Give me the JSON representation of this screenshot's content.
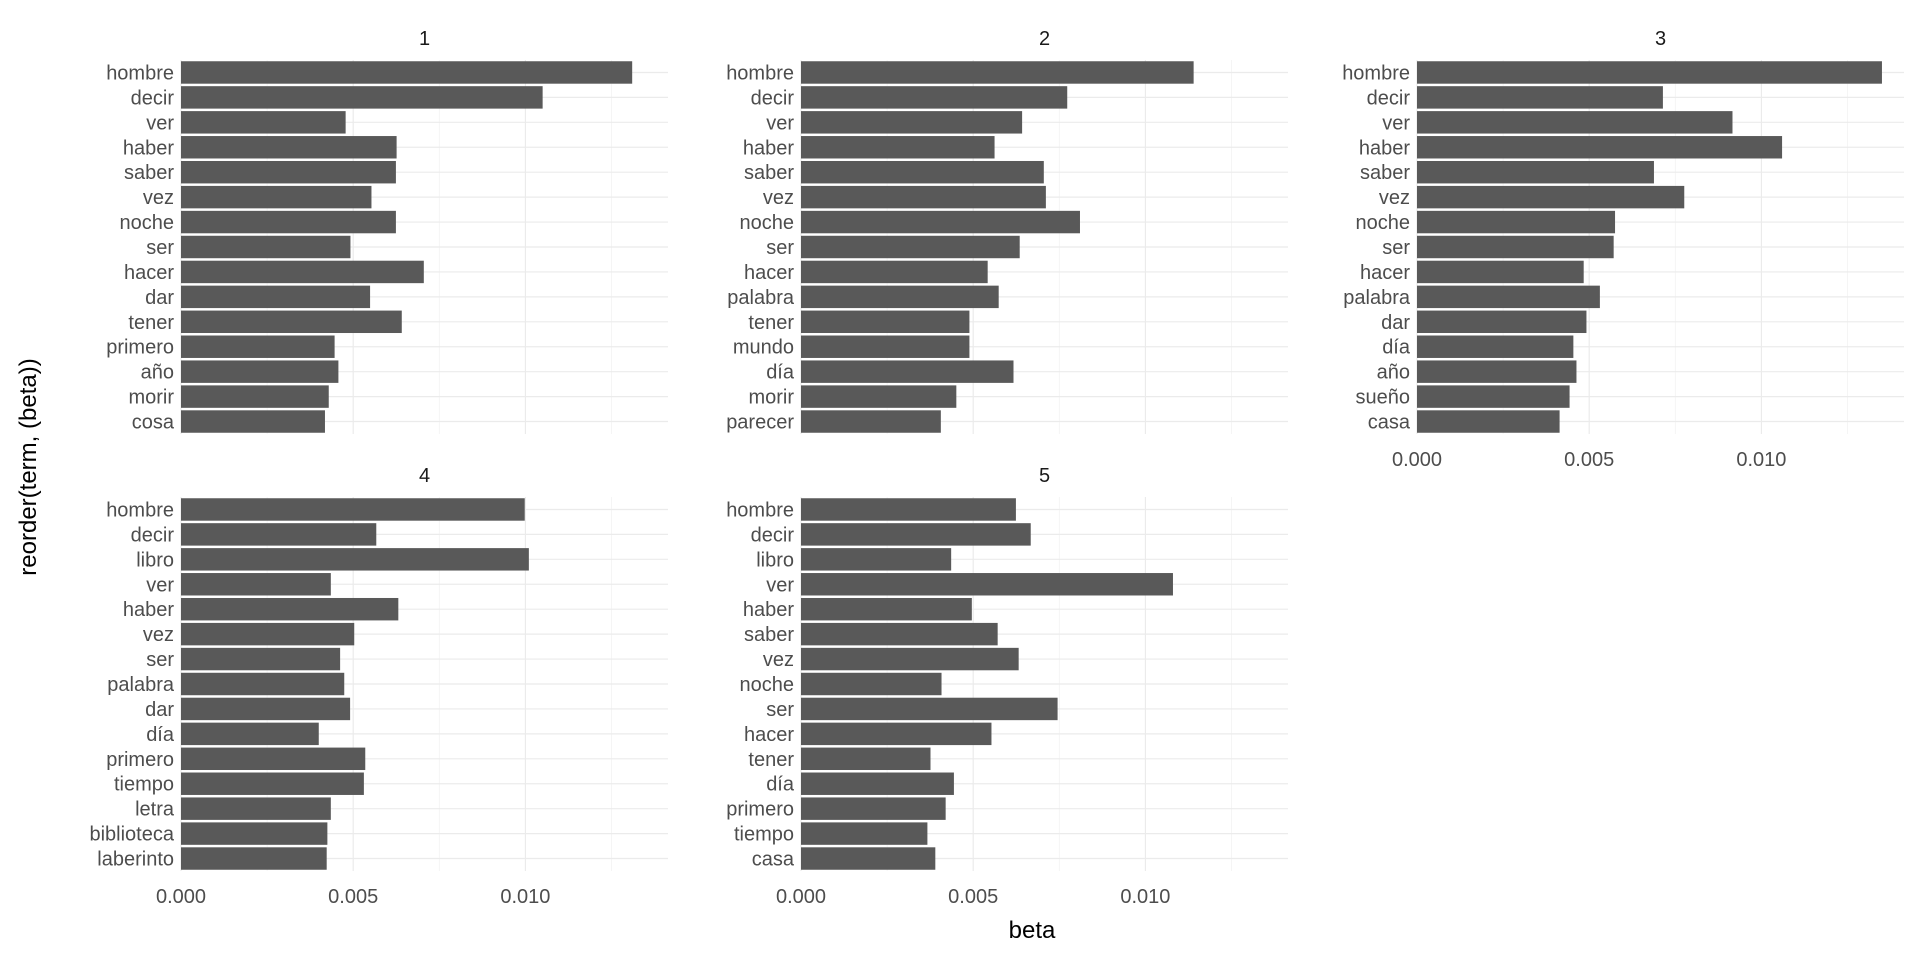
{
  "chart_data": {
    "type": "bar",
    "orientation": "horizontal",
    "faceted": true,
    "xlabel": "beta",
    "ylabel": "reorder(term, (beta))",
    "xlim": [
      0,
      0.01414
    ],
    "x_ticks": [
      0.0,
      0.005,
      0.01
    ],
    "x_tick_labels": [
      "0.000",
      "0.005",
      "0.010"
    ],
    "grid": true,
    "legend": "none",
    "bar_color": "#595959",
    "facets": [
      {
        "label": "1",
        "terms": [
          "hombre",
          "decir",
          "ver",
          "haber",
          "saber",
          "vez",
          "noche",
          "ser",
          "hacer",
          "dar",
          "tener",
          "primero",
          "año",
          "morir",
          "cosa"
        ],
        "values": [
          0.0131,
          0.0105,
          0.00478,
          0.00626,
          0.00624,
          0.00553,
          0.00624,
          0.00492,
          0.00705,
          0.00549,
          0.00641,
          0.00446,
          0.00457,
          0.00429,
          0.00418
        ]
      },
      {
        "label": "2",
        "terms": [
          "hombre",
          "decir",
          "ver",
          "haber",
          "saber",
          "vez",
          "noche",
          "ser",
          "hacer",
          "palabra",
          "tener",
          "mundo",
          "día",
          "morir",
          "parecer"
        ],
        "values": [
          0.0114,
          0.00773,
          0.00642,
          0.00562,
          0.00705,
          0.00711,
          0.0081,
          0.00635,
          0.00542,
          0.00574,
          0.00489,
          0.00489,
          0.00617,
          0.00451,
          0.00406
        ]
      },
      {
        "label": "3",
        "terms": [
          "hombre",
          "decir",
          "ver",
          "haber",
          "saber",
          "vez",
          "noche",
          "ser",
          "hacer",
          "palabra",
          "dar",
          "día",
          "año",
          "sueño",
          "casa"
        ],
        "values": [
          0.0135,
          0.00714,
          0.00916,
          0.0106,
          0.00688,
          0.00776,
          0.00575,
          0.00571,
          0.00484,
          0.00531,
          0.00492,
          0.00454,
          0.00463,
          0.00443,
          0.00414
        ]
      },
      {
        "label": "4",
        "terms": [
          "hombre",
          "decir",
          "libro",
          "ver",
          "haber",
          "vez",
          "ser",
          "palabra",
          "dar",
          "día",
          "primero",
          "tiempo",
          "letra",
          "biblioteca",
          "laberinto"
        ],
        "values": [
          0.00998,
          0.00567,
          0.0101,
          0.00435,
          0.00631,
          0.00503,
          0.00462,
          0.00474,
          0.00491,
          0.004,
          0.00535,
          0.00531,
          0.00435,
          0.00425,
          0.00423
        ]
      },
      {
        "label": "5",
        "terms": [
          "hombre",
          "decir",
          "libro",
          "ver",
          "haber",
          "saber",
          "vez",
          "noche",
          "ser",
          "hacer",
          "tener",
          "día",
          "primero",
          "tiempo",
          "casa"
        ],
        "values": [
          0.00624,
          0.00667,
          0.00436,
          0.0108,
          0.00496,
          0.00571,
          0.00632,
          0.00408,
          0.00745,
          0.00553,
          0.00376,
          0.00444,
          0.0042,
          0.00367,
          0.0039
        ]
      }
    ]
  }
}
